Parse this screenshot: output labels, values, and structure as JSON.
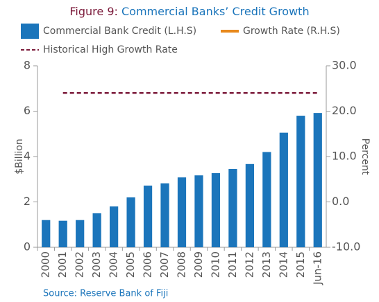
{
  "chart_data": {
    "type": "bar",
    "figure_label": "Figure 9:",
    "title": "Commercial Banks’ Credit Growth",
    "categories": [
      "2000",
      "2001",
      "2002",
      "2003",
      "2004",
      "2005",
      "2006",
      "2007",
      "2008",
      "2009",
      "2010",
      "2011",
      "2012",
      "2013",
      "2014",
      "2015",
      "Jun-16"
    ],
    "series": [
      {
        "name": "Commercial Bank Credit (L.H.S)",
        "type": "bar",
        "color": "#1b75bb",
        "values": [
          1.2,
          1.17,
          1.2,
          1.5,
          1.8,
          2.2,
          2.72,
          2.82,
          3.08,
          3.17,
          3.27,
          3.45,
          3.67,
          4.2,
          5.05,
          5.8,
          5.92
        ]
      },
      {
        "name": "Growth Rate (R.H.S)",
        "type": "line",
        "axis": "y2",
        "color": "#e8891c",
        "values": [
          null,
          null,
          null,
          null,
          null,
          null,
          null,
          null,
          null,
          null,
          null,
          null,
          null,
          null,
          null,
          null,
          null
        ]
      },
      {
        "name": "Historical High Growth Rate",
        "type": "line",
        "axis": "y2",
        "color": "#7b1a3a",
        "dashed": true,
        "values": [
          null,
          24,
          24,
          24,
          24,
          24,
          24,
          24,
          24,
          24,
          24,
          24,
          24,
          24,
          24,
          24,
          24
        ]
      }
    ],
    "ylabel": "$Billion",
    "y2label": "Percent",
    "ylim": [
      0,
      8
    ],
    "yticks": [
      0,
      2,
      4,
      6,
      8
    ],
    "y2lim": [
      -10,
      30
    ],
    "y2ticks": [
      {
        "value": -10,
        "label": "-10.0"
      },
      {
        "value": 0,
        "label": "0.0"
      },
      {
        "value": 10,
        "label": "10.0"
      },
      {
        "value": 20,
        "label": "20.0"
      },
      {
        "value": 30,
        "label": "30.0"
      }
    ],
    "source": "Source: Reserve Bank of Fiji"
  }
}
